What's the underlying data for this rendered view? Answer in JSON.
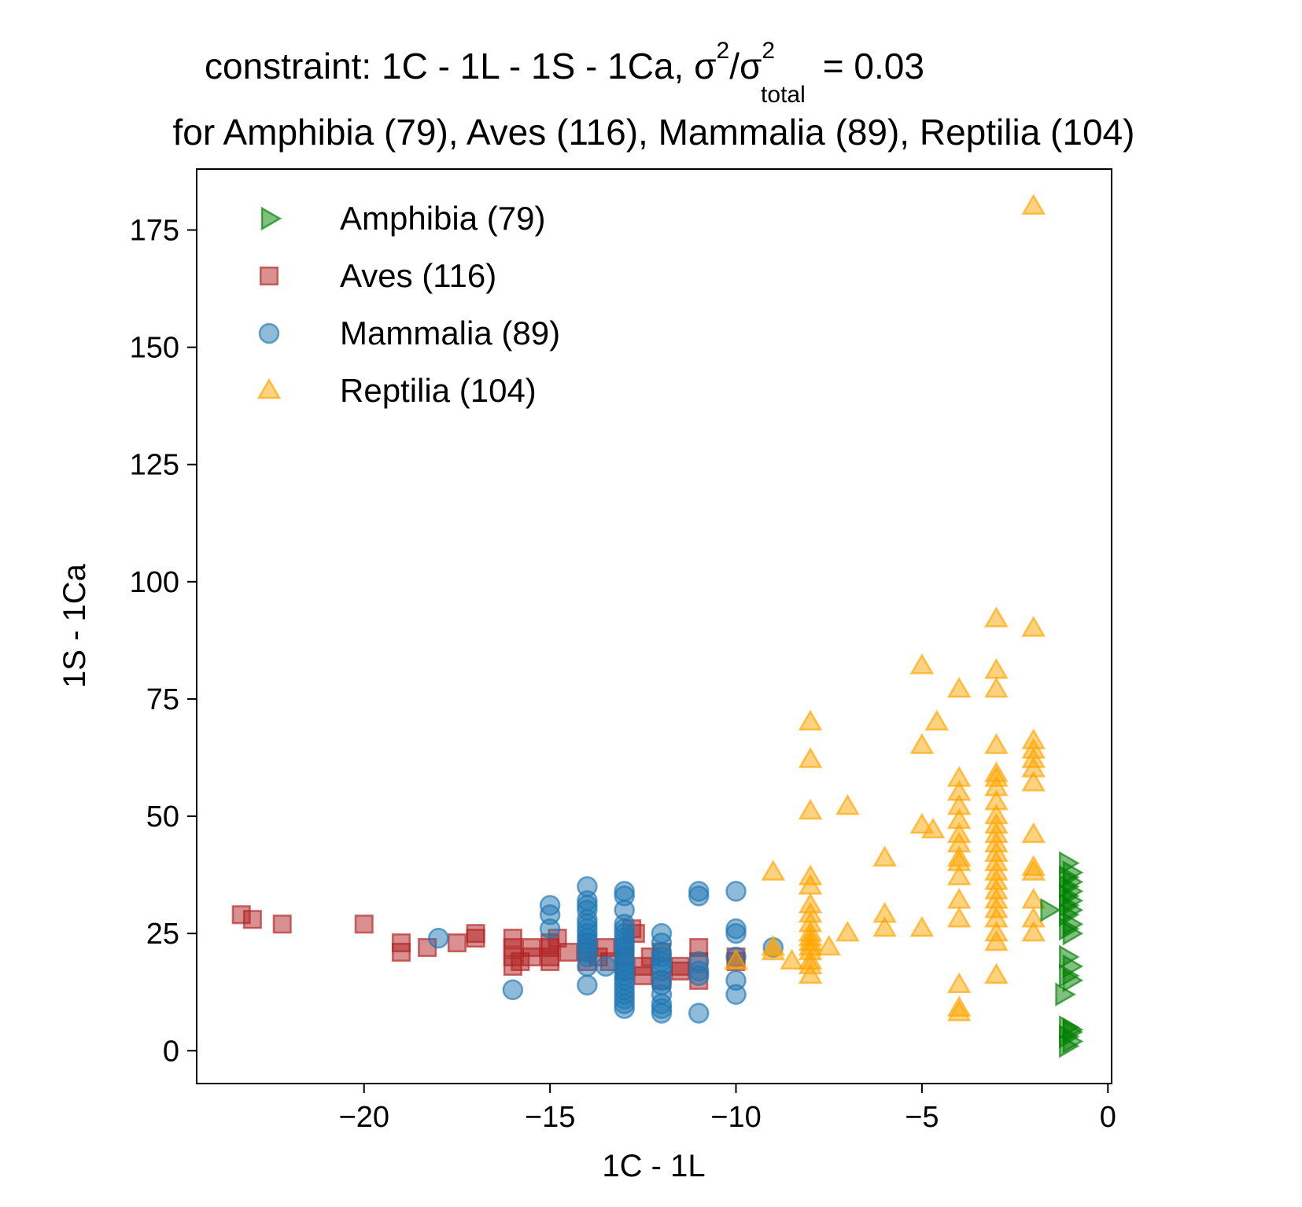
{
  "chart_data": {
    "type": "scatter",
    "title_parts": {
      "prefix": "constraint: 1C - 1L - 1S - 1Ca, σ",
      "sup1": "2",
      "mid": "/σ",
      "sup2": "2",
      "sub": "total",
      "suffix": "=  0.03"
    },
    "subtitle": "for Amphibia (79), Aves (116), Mammalia (89), Reptilia (104)",
    "xlabel": "1C - 1L",
    "ylabel": "1S - 1Ca",
    "xlim": [
      -24.5,
      0.1
    ],
    "ylim": [
      -7,
      188
    ],
    "xticks": [
      -20,
      -15,
      -10,
      -5,
      0
    ],
    "xtick_labels": [
      "−20",
      "−15",
      "−10",
      "−5",
      "0"
    ],
    "yticks": [
      0,
      25,
      50,
      75,
      100,
      125,
      150,
      175
    ],
    "ytick_labels": [
      "0",
      "25",
      "50",
      "75",
      "100",
      "125",
      "150",
      "175"
    ],
    "grid": false,
    "legend_position": "upper-left",
    "series": [
      {
        "name": "Amphibia (79)",
        "marker": "triangle-right",
        "color": "#008000",
        "points": [
          [
            -1.1,
            40
          ],
          [
            -1,
            38
          ],
          [
            -1.1,
            37
          ],
          [
            -1,
            36
          ],
          [
            -1.1,
            35
          ],
          [
            -1,
            34
          ],
          [
            -1.1,
            33
          ],
          [
            -1,
            32
          ],
          [
            -1.1,
            31
          ],
          [
            -1,
            30
          ],
          [
            -1.1,
            29
          ],
          [
            -1,
            27
          ],
          [
            -1.1,
            26
          ],
          [
            -1,
            25
          ],
          [
            -1.6,
            30
          ],
          [
            -1.1,
            20
          ],
          [
            -1,
            18
          ],
          [
            -1.1,
            16
          ],
          [
            -1,
            15
          ],
          [
            -1.2,
            12
          ],
          [
            -1.1,
            5
          ],
          [
            -1,
            4
          ],
          [
            -1.1,
            3
          ],
          [
            -1,
            2
          ],
          [
            -1.1,
            1
          ],
          [
            -1,
            4.5
          ]
        ]
      },
      {
        "name": "Aves (116)",
        "marker": "square",
        "color": "#b22222",
        "points": [
          [
            -23.3,
            29
          ],
          [
            -23,
            28
          ],
          [
            -22.2,
            27
          ],
          [
            -20,
            27
          ],
          [
            -19,
            23
          ],
          [
            -19,
            21
          ],
          [
            -18.3,
            22
          ],
          [
            -17.5,
            23
          ],
          [
            -17,
            24
          ],
          [
            -17,
            25
          ],
          [
            -16,
            24
          ],
          [
            -16,
            22
          ],
          [
            -16,
            20
          ],
          [
            -16,
            18
          ],
          [
            -15.8,
            19
          ],
          [
            -15.5,
            20
          ],
          [
            -15.5,
            22
          ],
          [
            -15,
            19
          ],
          [
            -15,
            20
          ],
          [
            -15,
            22
          ],
          [
            -15,
            23
          ],
          [
            -14.8,
            24
          ],
          [
            -14.5,
            21
          ],
          [
            -14,
            19
          ],
          [
            -14,
            21
          ],
          [
            -14,
            23
          ],
          [
            -13.7,
            20
          ],
          [
            -13.5,
            22
          ],
          [
            -13.4,
            19
          ],
          [
            -13,
            17
          ],
          [
            -13,
            20
          ],
          [
            -13,
            22
          ],
          [
            -12.8,
            26
          ],
          [
            -12.7,
            25
          ],
          [
            -12.5,
            16
          ],
          [
            -12.5,
            18
          ],
          [
            -12.3,
            20
          ],
          [
            -12,
            21
          ],
          [
            -12,
            15
          ],
          [
            -11.5,
            18
          ],
          [
            -11.5,
            17
          ],
          [
            -11,
            19
          ],
          [
            -11,
            15
          ],
          [
            -11,
            22
          ],
          [
            -10,
            19
          ],
          [
            -10,
            20
          ]
        ]
      },
      {
        "name": "Mammalia (89)",
        "marker": "circle",
        "color": "#1f77b4",
        "points": [
          [
            -18,
            24
          ],
          [
            -16,
            13
          ],
          [
            -15,
            31
          ],
          [
            -15,
            29
          ],
          [
            -15,
            26
          ],
          [
            -14,
            35
          ],
          [
            -14,
            32
          ],
          [
            -14,
            31
          ],
          [
            -14,
            30
          ],
          [
            -14,
            28
          ],
          [
            -14,
            27
          ],
          [
            -14,
            26
          ],
          [
            -14,
            25
          ],
          [
            -14,
            24
          ],
          [
            -14,
            23
          ],
          [
            -14,
            22
          ],
          [
            -14,
            21
          ],
          [
            -14,
            20
          ],
          [
            -14,
            18
          ],
          [
            -14,
            14
          ],
          [
            -13.5,
            18
          ],
          [
            -13,
            34
          ],
          [
            -13,
            33
          ],
          [
            -13,
            30
          ],
          [
            -13,
            27
          ],
          [
            -13,
            26
          ],
          [
            -13,
            25
          ],
          [
            -13,
            24
          ],
          [
            -13,
            23
          ],
          [
            -13,
            22
          ],
          [
            -13,
            21
          ],
          [
            -13,
            20
          ],
          [
            -13,
            19
          ],
          [
            -13,
            18
          ],
          [
            -13,
            17
          ],
          [
            -13,
            16
          ],
          [
            -13,
            15
          ],
          [
            -13,
            14
          ],
          [
            -13,
            13
          ],
          [
            -13,
            12
          ],
          [
            -13,
            11
          ],
          [
            -13,
            10
          ],
          [
            -13,
            9
          ],
          [
            -12,
            25
          ],
          [
            -12,
            23
          ],
          [
            -12,
            21
          ],
          [
            -12,
            20
          ],
          [
            -12,
            19
          ],
          [
            -12,
            18
          ],
          [
            -12,
            17
          ],
          [
            -12,
            15
          ],
          [
            -12,
            14
          ],
          [
            -12,
            12
          ],
          [
            -12,
            10
          ],
          [
            -12,
            9
          ],
          [
            -12,
            8
          ],
          [
            -11,
            34
          ],
          [
            -11,
            33
          ],
          [
            -11,
            19
          ],
          [
            -11,
            17
          ],
          [
            -11,
            16
          ],
          [
            -11,
            8
          ],
          [
            -10,
            34
          ],
          [
            -10,
            26
          ],
          [
            -10,
            25
          ],
          [
            -10,
            20
          ],
          [
            -10,
            15
          ],
          [
            -10,
            12
          ],
          [
            -9,
            22
          ]
        ]
      },
      {
        "name": "Reptilia (104)",
        "marker": "triangle-up",
        "color": "#ffa500",
        "points": [
          [
            -2,
            180
          ],
          [
            -3,
            92
          ],
          [
            -2,
            90
          ],
          [
            -5,
            82
          ],
          [
            -3,
            81
          ],
          [
            -4,
            77
          ],
          [
            -3,
            77
          ],
          [
            -4.6,
            70
          ],
          [
            -8,
            70
          ],
          [
            -5,
            65
          ],
          [
            -3,
            65
          ],
          [
            -2,
            66
          ],
          [
            -2,
            64
          ],
          [
            -2,
            62
          ],
          [
            -8,
            62
          ],
          [
            -2,
            60
          ],
          [
            -3,
            59
          ],
          [
            -3,
            58
          ],
          [
            -4,
            58
          ],
          [
            -2,
            57
          ],
          [
            -4,
            55
          ],
          [
            -3,
            56
          ],
          [
            -3,
            53
          ],
          [
            -4,
            52
          ],
          [
            -7,
            52
          ],
          [
            -8,
            51
          ],
          [
            -4,
            49
          ],
          [
            -3,
            50
          ],
          [
            -5,
            48
          ],
          [
            -3,
            48
          ],
          [
            -4.7,
            47
          ],
          [
            -4,
            46
          ],
          [
            -2,
            46
          ],
          [
            -3,
            46
          ],
          [
            -3,
            44
          ],
          [
            -4,
            44
          ],
          [
            -3,
            42
          ],
          [
            -6,
            41
          ],
          [
            -4,
            41
          ],
          [
            -4,
            40
          ],
          [
            -3,
            40
          ],
          [
            -2,
            39
          ],
          [
            -2,
            38
          ],
          [
            -3,
            38
          ],
          [
            -9,
            38
          ],
          [
            -4,
            37
          ],
          [
            -3,
            36
          ],
          [
            -8,
            37
          ],
          [
            -8,
            35
          ],
          [
            -3,
            34
          ],
          [
            -3,
            32
          ],
          [
            -4,
            32
          ],
          [
            -2,
            32
          ],
          [
            -8,
            31
          ],
          [
            -8,
            29
          ],
          [
            -3,
            30
          ],
          [
            -6,
            29
          ],
          [
            -4,
            28
          ],
          [
            -3,
            28
          ],
          [
            -2,
            28
          ],
          [
            -8,
            27
          ],
          [
            -6,
            26
          ],
          [
            -5,
            26
          ],
          [
            -8,
            25
          ],
          [
            -3,
            25
          ],
          [
            -2,
            25
          ],
          [
            -7,
            25
          ],
          [
            -8,
            24
          ],
          [
            -8,
            23
          ],
          [
            -3,
            23
          ],
          [
            -7.5,
            22
          ],
          [
            -8,
            22
          ],
          [
            -9,
            22
          ],
          [
            -8,
            21
          ],
          [
            -8.5,
            19
          ],
          [
            -8,
            19
          ],
          [
            -10,
            19
          ],
          [
            -8,
            18
          ],
          [
            -9,
            21
          ],
          [
            -8,
            16
          ],
          [
            -3,
            16
          ],
          [
            -4,
            14
          ],
          [
            -4,
            9
          ],
          [
            -4,
            8
          ]
        ]
      }
    ]
  }
}
